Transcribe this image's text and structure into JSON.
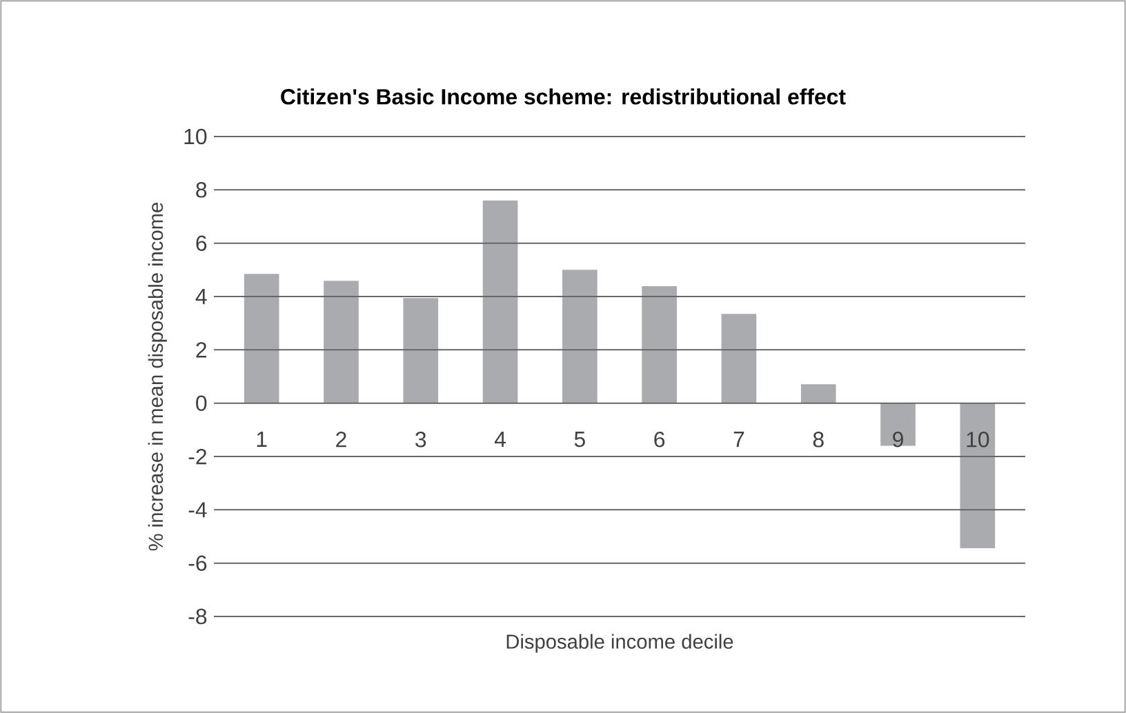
{
  "chart_data": {
    "type": "bar",
    "title": "Citizen's Basic Income scheme: redistributional effect",
    "xlabel": "Disposable income decile",
    "ylabel": "% increase in mean disposable income",
    "categories": [
      "1",
      "2",
      "3",
      "4",
      "5",
      "6",
      "7",
      "8",
      "9",
      "10"
    ],
    "values": [
      4.85,
      4.59,
      3.94,
      7.6,
      5.0,
      4.39,
      3.35,
      0.71,
      -1.6,
      -5.44
    ],
    "color": "#a9abae",
    "ylim": [
      -8,
      10
    ],
    "yticks": [
      -8,
      -6,
      -4,
      -2,
      0,
      2,
      4,
      6,
      8,
      10
    ],
    "grid": "y"
  }
}
